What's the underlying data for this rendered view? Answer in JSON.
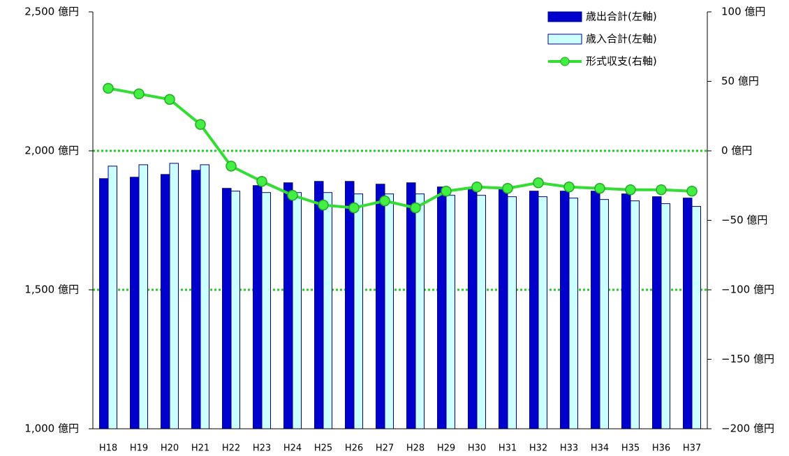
{
  "chart_data": {
    "type": "bar_line",
    "categories": [
      "H18",
      "H19",
      "H20",
      "H21",
      "H22",
      "H23",
      "H24",
      "H25",
      "H26",
      "H27",
      "H28",
      "H29",
      "H30",
      "H31",
      "H32",
      "H33",
      "H34",
      "H35",
      "H36",
      "H37"
    ],
    "series": [
      {
        "name": "歳出合計(左軸)",
        "type": "bar",
        "color": "#0000cc",
        "values": [
          1900,
          1905,
          1915,
          1930,
          1865,
          1875,
          1885,
          1890,
          1890,
          1880,
          1885,
          1870,
          1865,
          1865,
          1855,
          1855,
          1855,
          1845,
          1835,
          1830
        ]
      },
      {
        "name": "歳入合計(左軸)",
        "type": "bar",
        "color": "#ccffff",
        "values": [
          1945,
          1950,
          1955,
          1950,
          1855,
          1850,
          1850,
          1850,
          1845,
          1845,
          1845,
          1840,
          1840,
          1835,
          1835,
          1830,
          1825,
          1820,
          1810,
          1800
        ]
      },
      {
        "name": "形式収支(右軸)",
        "type": "line",
        "axis": "y2",
        "color": "#33dd33",
        "values": [
          45,
          41,
          37,
          19,
          -11,
          -22,
          -32,
          -39,
          -41,
          -36,
          -41,
          -29,
          -26,
          -27,
          -23,
          -26,
          -27,
          -28,
          -28,
          -29
        ]
      }
    ],
    "ylim": [
      1000,
      2500
    ],
    "yticks": [
      {
        "value": 1000,
        "label": "1,000 億円"
      },
      {
        "value": 1500,
        "label": "1,500 億円"
      },
      {
        "value": 2000,
        "label": "2,000 億円"
      },
      {
        "value": 2500,
        "label": "2,500 億円"
      }
    ],
    "y2lim": [
      -200,
      100
    ],
    "y2ticks": [
      {
        "value": 100,
        "label": "100 億円"
      },
      {
        "value": 50,
        "label": "50 億円"
      },
      {
        "value": 0,
        "label": "0 億円"
      },
      {
        "value": -50,
        "label": "−50 億円"
      },
      {
        "value": -100,
        "label": "−100 億円"
      },
      {
        "value": -150,
        "label": "−150 億円"
      },
      {
        "value": -200,
        "label": "−200 億円"
      }
    ],
    "y2_negative_color": "#ee0000",
    "grid": true,
    "grid_color": "#22cc22",
    "legend": "top-right"
  }
}
